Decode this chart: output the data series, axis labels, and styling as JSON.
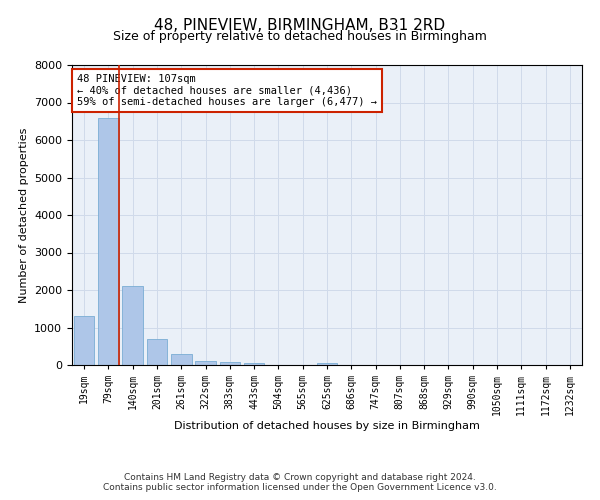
{
  "title": "48, PINEVIEW, BIRMINGHAM, B31 2RD",
  "subtitle": "Size of property relative to detached houses in Birmingham",
  "xlabel": "Distribution of detached houses by size in Birmingham",
  "ylabel": "Number of detached properties",
  "categories": [
    "19sqm",
    "79sqm",
    "140sqm",
    "201sqm",
    "261sqm",
    "322sqm",
    "383sqm",
    "443sqm",
    "504sqm",
    "565sqm",
    "625sqm",
    "686sqm",
    "747sqm",
    "807sqm",
    "868sqm",
    "929sqm",
    "990sqm",
    "1050sqm",
    "1111sqm",
    "1172sqm",
    "1232sqm"
  ],
  "values": [
    1300,
    6600,
    2100,
    700,
    300,
    120,
    80,
    60,
    0,
    0,
    60,
    0,
    0,
    0,
    0,
    0,
    0,
    0,
    0,
    0,
    0
  ],
  "bar_color": "#aec6e8",
  "bar_edge_color": "#7aadd4",
  "vline_x": 1.42,
  "vline_color": "#cc2200",
  "annotation_text": "48 PINEVIEW: 107sqm\n← 40% of detached houses are smaller (4,436)\n59% of semi-detached houses are larger (6,477) →",
  "annotation_box_color": "white",
  "annotation_box_edge": "#cc2200",
  "ylim": [
    0,
    8000
  ],
  "yticks": [
    0,
    1000,
    2000,
    3000,
    4000,
    5000,
    6000,
    7000,
    8000
  ],
  "grid_color": "#d0daea",
  "background_color": "#eaf0f8",
  "footer_line1": "Contains HM Land Registry data © Crown copyright and database right 2024.",
  "footer_line2": "Contains public sector information licensed under the Open Government Licence v3.0.",
  "title_fontsize": 11,
  "subtitle_fontsize": 9,
  "label_fontsize": 8,
  "tick_fontsize": 7,
  "annotation_fontsize": 7.5,
  "footer_fontsize": 6.5
}
